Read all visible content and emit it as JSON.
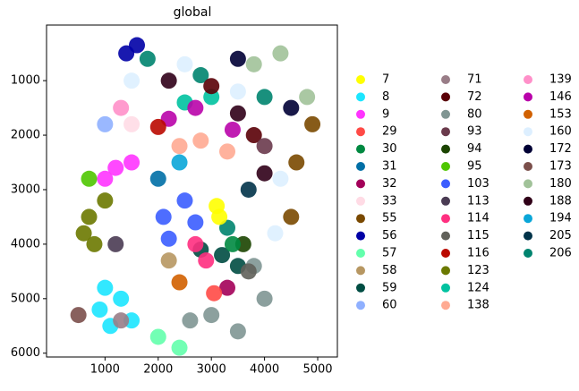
{
  "chart_data": {
    "type": "scatter",
    "title": "global",
    "xlim": [
      -100,
      5370
    ],
    "ylim": [
      6070,
      -20
    ],
    "xticks": [
      1000,
      2000,
      3000,
      4000,
      5000
    ],
    "yticks": [
      1000,
      2000,
      3000,
      4000,
      5000,
      6000
    ],
    "series": [
      {
        "name": "160",
        "color": "#ddefff",
        "x": [
          2500,
          3500,
          4300,
          4200,
          1500
        ],
        "y": [
          700,
          1200,
          2800,
          3800,
          1000
        ]
      },
      {
        "name": "180",
        "color": "#a1c299",
        "x": [
          3800,
          4800,
          4300
        ],
        "y": [
          700,
          1300,
          500
        ]
      },
      {
        "name": "55",
        "color": "#7a4900",
        "x": [
          4600,
          4900,
          4500
        ],
        "y": [
          2500,
          1800,
          3500
        ]
      },
      {
        "name": "172",
        "color": "#000035",
        "x": [
          3500,
          4500
        ],
        "y": [
          600,
          1500
        ]
      },
      {
        "name": "206",
        "color": "#00846f",
        "x": [
          1800,
          2800,
          4000,
          3300
        ],
        "y": [
          600,
          900,
          1300,
          3700
        ]
      },
      {
        "name": "188",
        "color": "#300018",
        "x": [
          2200,
          3500,
          4000
        ],
        "y": [
          1000,
          1600,
          2700
        ]
      },
      {
        "name": "56",
        "color": "#0000a6",
        "x": [
          1600,
          1400
        ],
        "y": [
          350,
          500
        ]
      },
      {
        "name": "124",
        "color": "#00c2a0",
        "x": [
          2500,
          3000
        ],
        "y": [
          1400,
          1300
        ]
      },
      {
        "name": "146",
        "color": "#b903aa",
        "x": [
          2700,
          3400,
          2200
        ],
        "y": [
          1500,
          1900,
          1700
        ]
      },
      {
        "name": "138",
        "color": "#ffaa92",
        "x": [
          2800,
          3300,
          2400
        ],
        "y": [
          2100,
          2300,
          2200
        ]
      },
      {
        "name": "72",
        "color": "#5a0007",
        "x": [
          3000,
          3800
        ],
        "y": [
          1100,
          2000
        ]
      },
      {
        "name": "93",
        "color": "#6a3a4c",
        "x": [
          4000
        ],
        "y": [
          2200
        ]
      },
      {
        "name": "139",
        "color": "#ff90c9",
        "x": [
          1300
        ],
        "y": [
          1500
        ]
      },
      {
        "name": "60",
        "color": "#8fb0ff",
        "x": [
          1000
        ],
        "y": [
          1800
        ]
      },
      {
        "name": "33",
        "color": "#ffdbe5",
        "x": [
          1500
        ],
        "y": [
          1800
        ]
      },
      {
        "name": "116",
        "color": "#ba0900",
        "x": [
          2000
        ],
        "y": [
          1850
        ]
      },
      {
        "name": "194",
        "color": "#0aa6d8",
        "x": [
          2400
        ],
        "y": [
          2500
        ]
      },
      {
        "name": "31",
        "color": "#006fa6",
        "x": [
          2000
        ],
        "y": [
          2800
        ]
      },
      {
        "name": "9",
        "color": "#ff34ff",
        "x": [
          1200,
          1500,
          1000
        ],
        "y": [
          2600,
          2500,
          2800
        ]
      },
      {
        "name": "95",
        "color": "#4fc601",
        "x": [
          700
        ],
        "y": [
          2800
        ]
      },
      {
        "name": "123",
        "color": "#6b7900",
        "x": [
          700,
          800,
          1000,
          600
        ],
        "y": [
          3500,
          4000,
          3200,
          3800
        ]
      },
      {
        "name": "103",
        "color": "#3b5dff",
        "x": [
          2100,
          2500,
          2200,
          2700
        ],
        "y": [
          3500,
          3200,
          3900,
          3600
        ]
      },
      {
        "name": "205",
        "color": "#013349",
        "x": [
          3700
        ],
        "y": [
          3000
        ]
      },
      {
        "name": "80",
        "color": "#809693",
        "x": [
          3000,
          3500,
          4000,
          3800,
          2600
        ],
        "y": [
          5300,
          5600,
          5000,
          4400,
          5400
        ]
      },
      {
        "name": "59",
        "color": "#004d43",
        "x": [
          3200,
          3500,
          2800
        ],
        "y": [
          4200,
          4400,
          4100
        ]
      },
      {
        "name": "114",
        "color": "#ff2f80",
        "x": [
          2700,
          2900
        ],
        "y": [
          4000,
          4300
        ]
      },
      {
        "name": "115",
        "color": "#61615a",
        "x": [
          3700
        ],
        "y": [
          4500
        ]
      },
      {
        "name": "94",
        "color": "#1b4400",
        "x": [
          3600
        ],
        "y": [
          4000
        ]
      },
      {
        "name": "30",
        "color": "#008941",
        "x": [
          3400
        ],
        "y": [
          4000
        ]
      },
      {
        "name": "113",
        "color": "#4a3b53",
        "x": [
          1200
        ],
        "y": [
          4000
        ]
      },
      {
        "name": "58",
        "color": "#b79762",
        "x": [
          2200
        ],
        "y": [
          4300
        ]
      },
      {
        "name": "153",
        "color": "#d16100",
        "x": [
          2400
        ],
        "y": [
          4700
        ]
      },
      {
        "name": "32",
        "color": "#a30059",
        "x": [
          3300
        ],
        "y": [
          4800
        ]
      },
      {
        "name": "29",
        "color": "#ff4a46",
        "x": [
          3050
        ],
        "y": [
          4900
        ]
      },
      {
        "name": "8",
        "color": "#1ce6ff",
        "x": [
          1000,
          1300,
          1100,
          1500,
          900
        ],
        "y": [
          4800,
          5000,
          5500,
          5400,
          5200
        ]
      },
      {
        "name": "71",
        "color": "#997d87",
        "x": [
          1300
        ],
        "y": [
          5400
        ]
      },
      {
        "name": "173",
        "color": "#7b4f4b",
        "x": [
          500
        ],
        "y": [
          5300
        ]
      },
      {
        "name": "57",
        "color": "#63ffac",
        "x": [
          2000,
          2400
        ],
        "y": [
          5700,
          5900
        ]
      },
      {
        "name": "7",
        "color": "#ffff00",
        "x": [
          3100,
          3150
        ],
        "y": [
          3300,
          3500
        ]
      }
    ],
    "legend_order": [
      "7",
      "8",
      "9",
      "29",
      "30",
      "31",
      "32",
      "33",
      "55",
      "56",
      "57",
      "58",
      "59",
      "60",
      "71",
      "72",
      "80",
      "93",
      "94",
      "95",
      "103",
      "113",
      "114",
      "115",
      "116",
      "123",
      "124",
      "138",
      "139",
      "146",
      "153",
      "160",
      "172",
      "173",
      "180",
      "188",
      "194",
      "205",
      "206"
    ]
  }
}
